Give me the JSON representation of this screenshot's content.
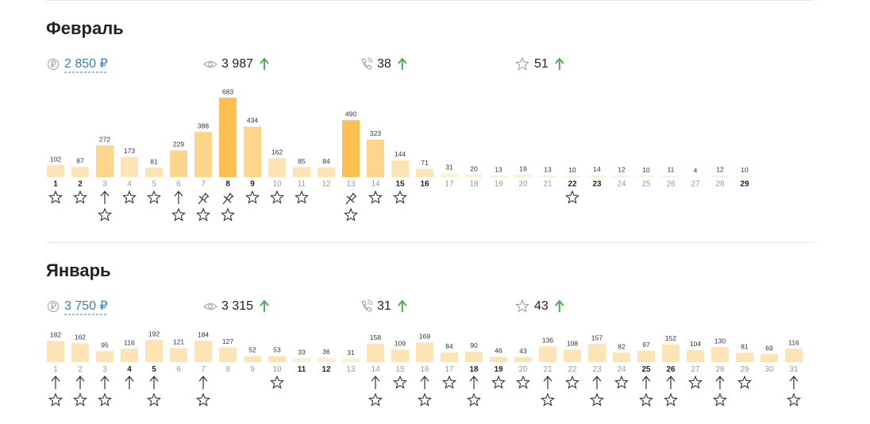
{
  "months": [
    {
      "title": "Февраль",
      "stats": {
        "money": "2 850 ₽",
        "views": "3 987",
        "calls": "38",
        "favorites": "51"
      },
      "days": [
        {
          "day": 1,
          "value": 102,
          "bold": true,
          "icons": [
            "star"
          ]
        },
        {
          "day": 2,
          "value": 87,
          "bold": true,
          "icons": [
            "star"
          ]
        },
        {
          "day": 3,
          "value": 272,
          "icons": [
            "arrow",
            "star"
          ]
        },
        {
          "day": 4,
          "value": 173,
          "icons": [
            "star"
          ]
        },
        {
          "day": 5,
          "value": 81,
          "icons": [
            "star"
          ]
        },
        {
          "day": 6,
          "value": 229,
          "icons": [
            "arrow",
            "star"
          ]
        },
        {
          "day": 7,
          "value": 388,
          "icons": [
            "pin",
            "star"
          ]
        },
        {
          "day": 8,
          "value": 683,
          "bold": true,
          "icons": [
            "pin",
            "star"
          ]
        },
        {
          "day": 9,
          "value": 434,
          "bold": true,
          "icons": [
            "star"
          ]
        },
        {
          "day": 10,
          "value": 162,
          "icons": [
            "star"
          ]
        },
        {
          "day": 11,
          "value": 85,
          "icons": [
            "star"
          ]
        },
        {
          "day": 12,
          "value": 84,
          "icons": []
        },
        {
          "day": 13,
          "value": 490,
          "icons": [
            "pin",
            "star"
          ]
        },
        {
          "day": 14,
          "value": 323,
          "icons": [
            "star"
          ]
        },
        {
          "day": 15,
          "value": 144,
          "bold": true,
          "icons": [
            "star"
          ]
        },
        {
          "day": 16,
          "value": 71,
          "bold": true,
          "icons": []
        },
        {
          "day": 17,
          "value": 31,
          "icons": []
        },
        {
          "day": 18,
          "value": 20,
          "icons": []
        },
        {
          "day": 19,
          "value": 13,
          "icons": []
        },
        {
          "day": 20,
          "value": 19,
          "icons": []
        },
        {
          "day": 21,
          "value": 13,
          "icons": []
        },
        {
          "day": 22,
          "value": 10,
          "bold": true,
          "icons": [
            "star"
          ]
        },
        {
          "day": 23,
          "value": 14,
          "bold": true,
          "icons": []
        },
        {
          "day": 24,
          "value": 12,
          "icons": []
        },
        {
          "day": 25,
          "value": 10,
          "icons": []
        },
        {
          "day": 26,
          "value": 11,
          "icons": []
        },
        {
          "day": 27,
          "value": 4,
          "icons": []
        },
        {
          "day": 28,
          "value": 12,
          "icons": []
        },
        {
          "day": 29,
          "value": 10,
          "bold": true,
          "icons": []
        }
      ]
    },
    {
      "title": "Январь",
      "stats": {
        "money": "3 750 ₽",
        "views": "3 315",
        "calls": "31",
        "favorites": "43"
      },
      "days": [
        {
          "day": 1,
          "value": 182,
          "icons": [
            "arrow",
            "star"
          ]
        },
        {
          "day": 2,
          "value": 162,
          "icons": [
            "arrow",
            "star"
          ]
        },
        {
          "day": 3,
          "value": 95,
          "icons": [
            "arrow",
            "star"
          ]
        },
        {
          "day": 4,
          "value": 116,
          "bold": true,
          "icons": [
            "arrow"
          ]
        },
        {
          "day": 5,
          "value": 192,
          "bold": true,
          "icons": [
            "arrow",
            "star"
          ]
        },
        {
          "day": 6,
          "value": 121,
          "icons": []
        },
        {
          "day": 7,
          "value": 184,
          "icons": [
            "arrow",
            "star"
          ]
        },
        {
          "day": 8,
          "value": 127,
          "icons": []
        },
        {
          "day": 9,
          "value": 52,
          "icons": []
        },
        {
          "day": 10,
          "value": 53,
          "icons": [
            "star"
          ]
        },
        {
          "day": 11,
          "value": 33,
          "bold": true,
          "icons": []
        },
        {
          "day": 12,
          "value": 36,
          "bold": true,
          "icons": []
        },
        {
          "day": 13,
          "value": 31,
          "icons": []
        },
        {
          "day": 14,
          "value": 158,
          "icons": [
            "arrow",
            "star"
          ]
        },
        {
          "day": 15,
          "value": 109,
          "icons": [
            "star"
          ]
        },
        {
          "day": 16,
          "value": 169,
          "icons": [
            "arrow",
            "star"
          ]
        },
        {
          "day": 17,
          "value": 84,
          "icons": [
            "star"
          ]
        },
        {
          "day": 18,
          "value": 90,
          "bold": true,
          "icons": [
            "arrow",
            "star"
          ]
        },
        {
          "day": 19,
          "value": 46,
          "bold": true,
          "icons": [
            "star"
          ]
        },
        {
          "day": 20,
          "value": 43,
          "icons": [
            "star"
          ]
        },
        {
          "day": 21,
          "value": 136,
          "icons": [
            "arrow",
            "star"
          ]
        },
        {
          "day": 22,
          "value": 108,
          "icons": [
            "star"
          ]
        },
        {
          "day": 23,
          "value": 157,
          "icons": [
            "arrow",
            "star"
          ]
        },
        {
          "day": 24,
          "value": 82,
          "icons": [
            "star"
          ]
        },
        {
          "day": 25,
          "value": 97,
          "bold": true,
          "icons": [
            "arrow",
            "star"
          ]
        },
        {
          "day": 26,
          "value": 152,
          "bold": true,
          "icons": [
            "arrow",
            "star"
          ]
        },
        {
          "day": 27,
          "value": 104,
          "icons": [
            "star"
          ]
        },
        {
          "day": 28,
          "value": 130,
          "icons": [
            "arrow",
            "star"
          ]
        },
        {
          "day": 29,
          "value": 81,
          "icons": [
            "star"
          ]
        },
        {
          "day": 30,
          "value": 69,
          "icons": []
        },
        {
          "day": 31,
          "value": 116,
          "icons": [
            "arrow",
            "star"
          ]
        }
      ]
    }
  ]
}
